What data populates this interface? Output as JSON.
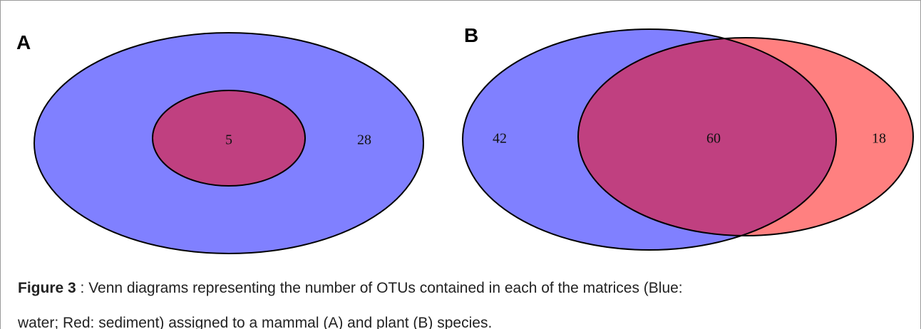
{
  "panels": [
    {
      "label": "A",
      "regions": {
        "inner": 5,
        "outer": 28
      }
    },
    {
      "label": "B",
      "regions": {
        "left": 42,
        "overlap": 60,
        "right": 18
      }
    }
  ],
  "caption": {
    "bold": "Figure 3",
    "lines": [
      " : Venn diagrams representing the number of OTUs contained in each of the matrices (Blue:",
      "water; Red: sediment) assigned to a mammal (A) and plant (B) species."
    ]
  }
}
